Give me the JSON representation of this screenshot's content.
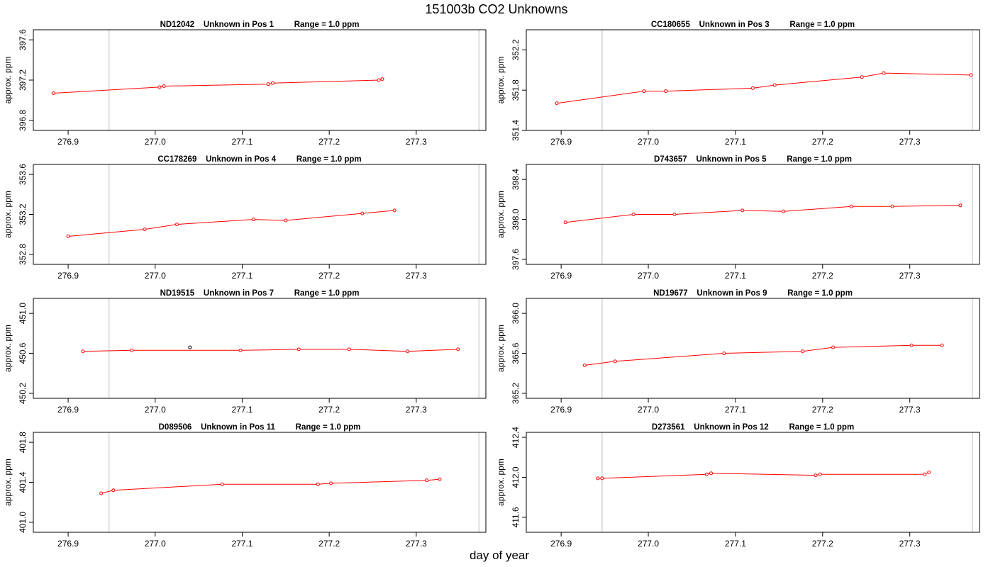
{
  "figure": {
    "title": "151003b  CO2 Unknowns",
    "xlabel": "day of year",
    "ylabel": "approx. ppm",
    "colors": {
      "series": "#ff0000",
      "axes": "#000000",
      "vline": "#bebebe",
      "highlight": "#000000"
    }
  },
  "chart_data": [
    {
      "type": "line",
      "title": "ND12042    Unknown in Pos 1         Range = 1.0 ppm",
      "xlim": [
        276.86,
        277.38
      ],
      "ylim": [
        396.7,
        397.7
      ],
      "xticks": [
        "276.9",
        "277.0",
        "277.1",
        "277.2",
        "277.3"
      ],
      "yticks": [
        "396.8",
        "397.2",
        "397.6"
      ],
      "vlines": [
        276.947,
        277.372
      ],
      "x": [
        276.883,
        277.005,
        277.01,
        277.13,
        277.135,
        277.257,
        277.261
      ],
      "y": [
        397.07,
        397.13,
        397.14,
        397.16,
        397.17,
        397.2,
        397.21
      ]
    },
    {
      "type": "line",
      "title": "CC180655    Unknown in Pos 3         Range = 1.0 ppm",
      "xlim": [
        276.86,
        277.38
      ],
      "ylim": [
        351.4,
        352.4
      ],
      "xticks": [
        "276.9",
        "277.0",
        "277.1",
        "277.2",
        "277.3"
      ],
      "yticks": [
        "351.4",
        "351.8",
        "352.2"
      ],
      "vlines": [
        276.947,
        277.372
      ],
      "x": [
        276.895,
        276.995,
        277.02,
        277.12,
        277.145,
        277.245,
        277.27,
        277.37
      ],
      "y": [
        351.67,
        351.79,
        351.79,
        351.82,
        351.85,
        351.93,
        351.97,
        351.95
      ]
    },
    {
      "type": "line",
      "title": "CC178269    Unknown in Pos 4         Range = 1.0 ppm",
      "xlim": [
        276.86,
        277.38
      ],
      "ylim": [
        352.7,
        353.7
      ],
      "xticks": [
        "276.9",
        "277.0",
        "277.1",
        "277.2",
        "277.3"
      ],
      "yticks": [
        "352.8",
        "353.2",
        "353.6"
      ],
      "vlines": [
        276.947,
        277.372
      ],
      "x": [
        276.9,
        276.988,
        277.025,
        277.113,
        277.15,
        277.238,
        277.275
      ],
      "y": [
        352.98,
        353.05,
        353.1,
        353.15,
        353.14,
        353.21,
        353.24
      ]
    },
    {
      "type": "line",
      "title": "D743657    Unknown in Pos 5         Range = 1.0 ppm",
      "xlim": [
        276.86,
        277.38
      ],
      "ylim": [
        397.55,
        398.55
      ],
      "xticks": [
        "276.9",
        "277.0",
        "277.1",
        "277.2",
        "277.3"
      ],
      "yticks": [
        "397.6",
        "398.0",
        "398.4"
      ],
      "vlines": [
        276.947,
        277.372
      ],
      "x": [
        276.905,
        276.983,
        277.03,
        277.108,
        277.155,
        277.233,
        277.28,
        277.358
      ],
      "y": [
        397.97,
        398.05,
        398.05,
        398.09,
        398.08,
        398.13,
        398.13,
        398.14
      ]
    },
    {
      "type": "line",
      "title": "ND19515    Unknown in Pos 7         Range = 1.0 ppm",
      "xlim": [
        276.86,
        277.38
      ],
      "ylim": [
        450.15,
        451.15
      ],
      "xticks": [
        "276.9",
        "277.0",
        "277.1",
        "277.2",
        "277.3"
      ],
      "yticks": [
        "450.2",
        "450.6",
        "451.0"
      ],
      "vlines": [
        276.947,
        277.372
      ],
      "x": [
        276.917,
        276.973,
        277.098,
        277.165,
        277.223,
        277.29,
        277.348
      ],
      "y": [
        450.62,
        450.63,
        450.63,
        450.64,
        450.64,
        450.62,
        450.64
      ],
      "highlight": {
        "x": 277.04,
        "y": 450.66
      }
    },
    {
      "type": "line",
      "title": "ND19677    Unknown in Pos 9         Range = 1.0 ppm",
      "xlim": [
        276.86,
        277.38
      ],
      "ylim": [
        365.15,
        366.15
      ],
      "xticks": [
        "276.9",
        "277.0",
        "277.1",
        "277.2",
        "277.3"
      ],
      "yticks": [
        "365.2",
        "365.6",
        "366.0"
      ],
      "vlines": [
        276.947,
        277.372
      ],
      "x": [
        276.927,
        276.962,
        277.087,
        277.177,
        277.212,
        277.302,
        277.337
      ],
      "y": [
        365.48,
        365.52,
        365.6,
        365.62,
        365.66,
        365.68,
        365.68
      ]
    },
    {
      "type": "line",
      "title": "D089506    Unknown in Pos 11         Range = 1.0 ppm",
      "xlim": [
        276.86,
        277.38
      ],
      "ylim": [
        400.9,
        401.9
      ],
      "xticks": [
        "276.9",
        "277.0",
        "277.1",
        "277.2",
        "277.3"
      ],
      "yticks": [
        "401.0",
        "401.4",
        "401.8"
      ],
      "vlines": [
        276.947,
        277.372
      ],
      "x": [
        276.938,
        276.952,
        277.077,
        277.187,
        277.202,
        277.312,
        277.327
      ],
      "y": [
        401.29,
        401.32,
        401.38,
        401.38,
        401.39,
        401.42,
        401.43
      ]
    },
    {
      "type": "line",
      "title": "D273561    Unknown in Pos 12         Range = 1.0 ppm",
      "xlim": [
        276.86,
        277.38
      ],
      "ylim": [
        411.45,
        412.45
      ],
      "xticks": [
        "276.9",
        "277.0",
        "277.1",
        "277.2",
        "277.3"
      ],
      "yticks": [
        "411.6",
        "412.0",
        "412.4"
      ],
      "vlines": [
        276.947,
        277.372
      ],
      "x": [
        276.942,
        276.947,
        277.067,
        277.072,
        277.192,
        277.197,
        277.317,
        277.322
      ],
      "y": [
        411.99,
        411.99,
        412.03,
        412.04,
        412.02,
        412.03,
        412.03,
        412.05
      ]
    }
  ]
}
